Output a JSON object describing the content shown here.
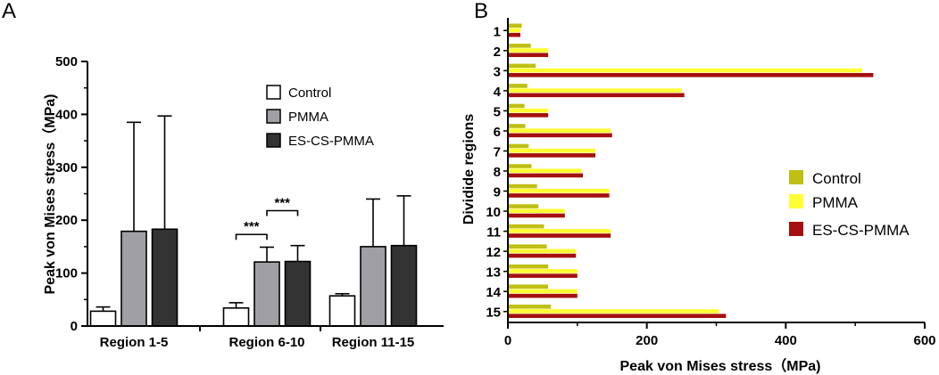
{
  "chart_data": [
    {
      "panel": "A",
      "type": "bar",
      "orientation": "vertical",
      "ylabel": "Peak von Mises stress（MPa)",
      "xlabel": "",
      "ylim": [
        0,
        500
      ],
      "yticks": [
        0,
        100,
        200,
        300,
        400,
        500
      ],
      "categories": [
        "Region 1-5",
        "Region 6-10",
        "Region 11-15"
      ],
      "series": [
        {
          "name": "Control",
          "color": "#ffffff",
          "values": [
            28,
            34,
            57
          ],
          "err": [
            8,
            10,
            4
          ]
        },
        {
          "name": "PMMA",
          "color": "#a0a0a4",
          "values": [
            179,
            121,
            150
          ],
          "err": [
            206,
            28,
            90
          ]
        },
        {
          "name": "ES-CS-PMMA",
          "color": "#333333",
          "values": [
            183,
            122,
            152
          ],
          "err": [
            214,
            30,
            94
          ]
        }
      ],
      "legend_position": "top-right",
      "significance": [
        {
          "label": "***",
          "category": "Region 6-10",
          "from": "Control",
          "to": "PMMA",
          "y": 173
        },
        {
          "label": "***",
          "category": "Region 6-10",
          "from": "PMMA",
          "to": "ES-CS-PMMA",
          "y": 218
        }
      ]
    },
    {
      "panel": "B",
      "type": "bar",
      "orientation": "horizontal",
      "xlabel": "Peak  von Mises stress（MPa)",
      "ylabel": "Dividide regions",
      "xlim": [
        0,
        600
      ],
      "xticks": [
        0,
        200,
        400,
        600
      ],
      "categories": [
        "1",
        "2",
        "3",
        "4",
        "5",
        "6",
        "7",
        "8",
        "9",
        "10",
        "11",
        "12",
        "13",
        "14",
        "15"
      ],
      "series": [
        {
          "name": "Control",
          "color": "#bfbf14",
          "values": [
            20,
            33,
            40,
            28,
            24,
            25,
            30,
            34,
            42,
            44,
            52,
            56,
            58,
            58,
            62
          ]
        },
        {
          "name": "PMMA",
          "color": "#ffff33",
          "values": [
            18,
            58,
            510,
            250,
            58,
            148,
            126,
            106,
            146,
            82,
            148,
            98,
            100,
            100,
            304
          ]
        },
        {
          "name": "ES-CS-PMMA",
          "color": "#a50f0f",
          "values": [
            18,
            58,
            526,
            254,
            58,
            150,
            126,
            108,
            146,
            82,
            148,
            98,
            100,
            100,
            314
          ]
        }
      ],
      "legend_position": "center-right"
    }
  ]
}
